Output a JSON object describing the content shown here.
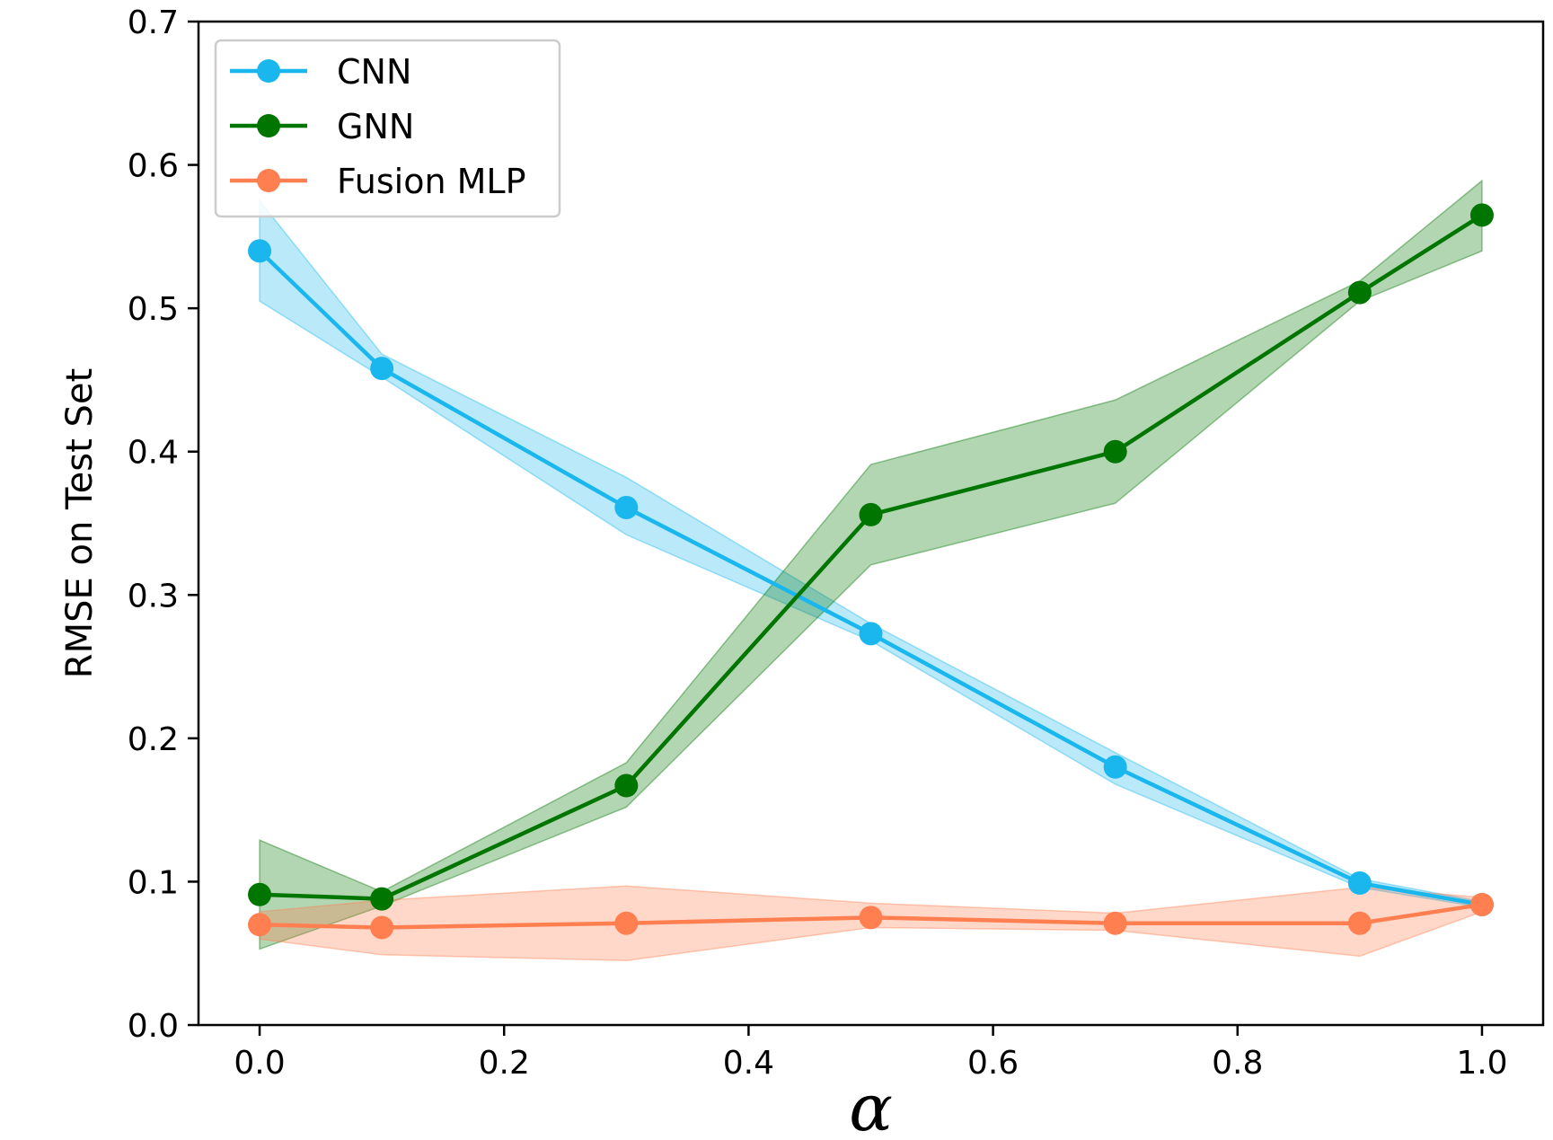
{
  "chart_data": {
    "type": "line",
    "title": "",
    "xlabel": "α",
    "ylabel": "RMSE on Test Set",
    "xlim": [
      -0.05,
      1.05
    ],
    "ylim": [
      0.0,
      0.7
    ],
    "xticks": [
      0.0,
      0.2,
      0.4,
      0.6,
      0.8,
      1.0
    ],
    "xtick_labels": [
      "0.0",
      "0.2",
      "0.4",
      "0.6",
      "0.8",
      "1.0"
    ],
    "yticks": [
      0.0,
      0.1,
      0.2,
      0.3,
      0.4,
      0.5,
      0.6,
      0.7
    ],
    "ytick_labels": [
      "0.0",
      "0.1",
      "0.2",
      "0.3",
      "0.4",
      "0.5",
      "0.6",
      "0.7"
    ],
    "grid": false,
    "legend_position": "top-left",
    "x": [
      0.0,
      0.1,
      0.3,
      0.5,
      0.7,
      0.9,
      1.0
    ],
    "series": [
      {
        "name": "CNN",
        "color": "#1ab7ee",
        "values": [
          0.54,
          0.458,
          0.361,
          0.273,
          0.18,
          0.099,
          0.084
        ],
        "lower": [
          0.505,
          0.452,
          0.342,
          0.268,
          0.168,
          0.096,
          0.082
        ],
        "upper": [
          0.575,
          0.468,
          0.382,
          0.28,
          0.19,
          0.102,
          0.086
        ]
      },
      {
        "name": "GNN",
        "color": "#007500",
        "values": [
          0.091,
          0.088,
          0.167,
          0.356,
          0.4,
          0.511,
          0.565
        ],
        "lower": [
          0.053,
          0.083,
          0.152,
          0.321,
          0.364,
          0.505,
          0.54
        ],
        "upper": [
          0.129,
          0.093,
          0.183,
          0.391,
          0.436,
          0.519,
          0.589
        ]
      },
      {
        "name": "Fusion MLP",
        "color": "#ff7f50",
        "values": [
          0.07,
          0.068,
          0.071,
          0.075,
          0.071,
          0.071,
          0.084
        ],
        "lower": [
          0.06,
          0.049,
          0.045,
          0.068,
          0.066,
          0.048,
          0.079
        ],
        "upper": [
          0.079,
          0.087,
          0.097,
          0.085,
          0.078,
          0.096,
          0.089
        ]
      }
    ]
  }
}
